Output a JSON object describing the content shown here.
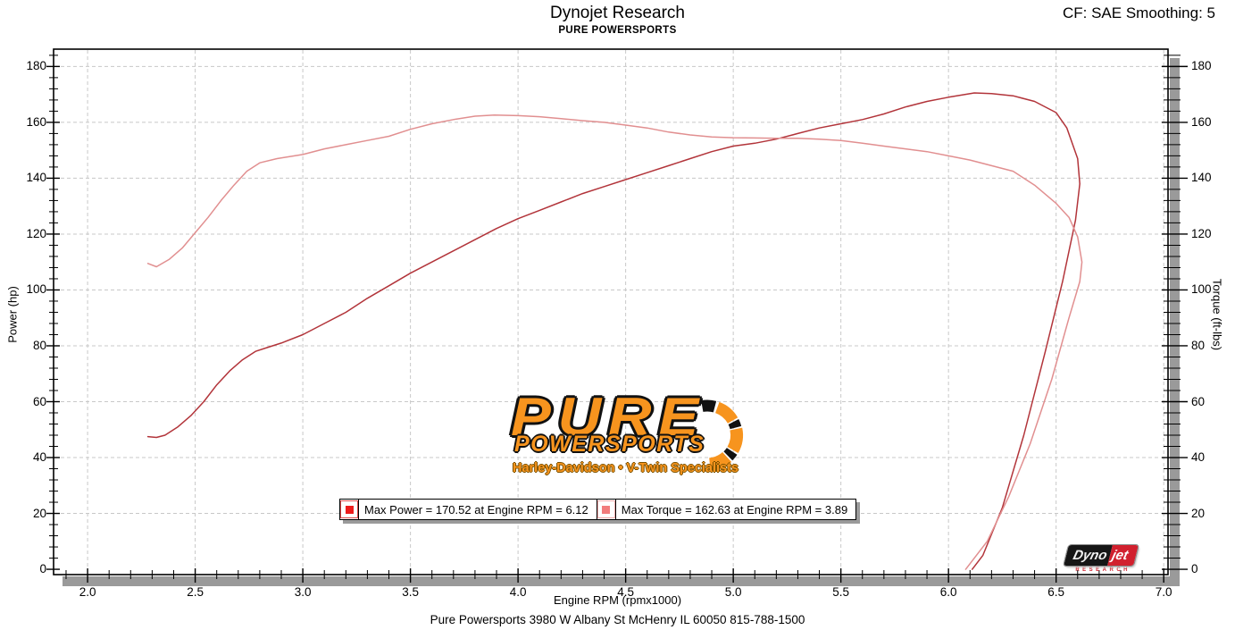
{
  "header": {
    "title": "Dynojet Research",
    "subtitle": "PURE POWERSPORTS",
    "smoothing": "CF: SAE Smoothing: 5"
  },
  "legend": {
    "power_label": "Max Power = 170.52 at Engine RPM = 6.12",
    "torque_label": "Max Torque = 162.63 at Engine RPM = 3.89"
  },
  "logo": {
    "line1": "PURE",
    "line2": "POWERSPORTS",
    "line3": "Harley-Davidson • V-Twin Specialists"
  },
  "watermark": {
    "brand_black": "Dyno",
    "brand_red": "jet",
    "sub": "RESEARCH"
  },
  "footer": {
    "address": "Pure Powersports 3980 W Albany St McHenry IL 60050 815-788-1500"
  },
  "colors": {
    "power_curve": "#b2343a",
    "torque_curve": "#e18f90",
    "power_marker": "#ee1b1b",
    "power_marker_border": "#df4a4a",
    "torque_marker": "#f27c7c",
    "torque_marker_border": "#f2a8a8",
    "grid": "#c8c8c8",
    "shadow": "#9a9a9a",
    "logo_orange": "#f7941e",
    "dynojet_red": "#d1202e"
  },
  "chart_data": {
    "type": "line",
    "title": "Dynojet Research",
    "subtitle": "PURE POWERSPORTS",
    "xlabel": "Engine RPM (rpmx1000)",
    "ylabel_left": "Power (hp)",
    "ylabel_right": "Torque (ft-lbs)",
    "xlim": [
      1.842,
      7.02
    ],
    "ylim": [
      -1.9,
      186.2
    ],
    "x_major_ticks": [
      "2.0",
      "2.5",
      "3.0",
      "3.5",
      "4.0",
      "4.5",
      "5.0",
      "5.5",
      "6.0",
      "6.5",
      "7.0"
    ],
    "x_minor_step": 0.1,
    "y_major_ticks": [
      0,
      20,
      40,
      60,
      80,
      100,
      120,
      140,
      160,
      180
    ],
    "y_minor_step": 4,
    "grid": "on, dashed, at every major tick",
    "legend_position": "bottom-center inside plot",
    "max_power": {
      "value": 170.52,
      "rpm": 6.12
    },
    "max_torque": {
      "value": 162.63,
      "rpm": 3.89
    },
    "series": [
      {
        "name": "Power",
        "units": "hp",
        "color": "#b2343a",
        "points": [
          [
            2.28,
            47.5
          ],
          [
            2.32,
            47.2
          ],
          [
            2.36,
            48.0
          ],
          [
            2.42,
            51.0
          ],
          [
            2.48,
            55.0
          ],
          [
            2.54,
            60.0
          ],
          [
            2.6,
            66.0
          ],
          [
            2.66,
            71.0
          ],
          [
            2.72,
            75.0
          ],
          [
            2.78,
            78.0
          ],
          [
            2.84,
            79.5
          ],
          [
            2.9,
            81.0
          ],
          [
            3.0,
            84.0
          ],
          [
            3.1,
            88.0
          ],
          [
            3.2,
            92.0
          ],
          [
            3.3,
            97.0
          ],
          [
            3.4,
            101.5
          ],
          [
            3.5,
            106.0
          ],
          [
            3.6,
            110.0
          ],
          [
            3.7,
            114.0
          ],
          [
            3.8,
            118.0
          ],
          [
            3.9,
            122.0
          ],
          [
            4.0,
            125.5
          ],
          [
            4.1,
            128.5
          ],
          [
            4.2,
            131.5
          ],
          [
            4.3,
            134.5
          ],
          [
            4.4,
            137.0
          ],
          [
            4.5,
            139.5
          ],
          [
            4.6,
            142.0
          ],
          [
            4.7,
            144.5
          ],
          [
            4.8,
            147.0
          ],
          [
            4.9,
            149.5
          ],
          [
            5.0,
            151.5
          ],
          [
            5.1,
            152.5
          ],
          [
            5.2,
            154.0
          ],
          [
            5.3,
            156.0
          ],
          [
            5.4,
            158.0
          ],
          [
            5.5,
            159.5
          ],
          [
            5.6,
            161.0
          ],
          [
            5.7,
            163.0
          ],
          [
            5.8,
            165.5
          ],
          [
            5.9,
            167.5
          ],
          [
            6.0,
            169.0
          ],
          [
            6.12,
            170.52
          ],
          [
            6.2,
            170.3
          ],
          [
            6.3,
            169.5
          ],
          [
            6.4,
            167.5
          ],
          [
            6.5,
            163.5
          ],
          [
            6.55,
            158.0
          ],
          [
            6.6,
            147.0
          ],
          [
            6.61,
            138.0
          ],
          [
            6.59,
            125.0
          ],
          [
            6.53,
            103.0
          ],
          [
            6.45,
            78.0
          ],
          [
            6.35,
            48.0
          ],
          [
            6.25,
            22.0
          ],
          [
            6.16,
            5.0
          ],
          [
            6.11,
            0.0
          ]
        ]
      },
      {
        "name": "Torque",
        "units": "ft-lbs",
        "color": "#e18f90",
        "points": [
          [
            2.28,
            109.5
          ],
          [
            2.32,
            108.3
          ],
          [
            2.38,
            111.0
          ],
          [
            2.44,
            115.0
          ],
          [
            2.5,
            120.5
          ],
          [
            2.56,
            126.0
          ],
          [
            2.62,
            132.0
          ],
          [
            2.68,
            137.5
          ],
          [
            2.74,
            142.5
          ],
          [
            2.8,
            145.5
          ],
          [
            2.88,
            147.0
          ],
          [
            3.0,
            148.5
          ],
          [
            3.1,
            150.5
          ],
          [
            3.2,
            152.0
          ],
          [
            3.3,
            153.5
          ],
          [
            3.4,
            155.0
          ],
          [
            3.5,
            157.5
          ],
          [
            3.6,
            159.5
          ],
          [
            3.7,
            161.0
          ],
          [
            3.8,
            162.2
          ],
          [
            3.89,
            162.63
          ],
          [
            4.0,
            162.4
          ],
          [
            4.1,
            162.0
          ],
          [
            4.2,
            161.3
          ],
          [
            4.3,
            160.6
          ],
          [
            4.4,
            160.0
          ],
          [
            4.5,
            159.0
          ],
          [
            4.6,
            158.0
          ],
          [
            4.7,
            156.5
          ],
          [
            4.8,
            155.5
          ],
          [
            4.9,
            154.8
          ],
          [
            5.0,
            154.5
          ],
          [
            5.1,
            154.4
          ],
          [
            5.2,
            154.3
          ],
          [
            5.3,
            154.3
          ],
          [
            5.4,
            154.0
          ],
          [
            5.5,
            153.5
          ],
          [
            5.6,
            152.5
          ],
          [
            5.7,
            151.5
          ],
          [
            5.8,
            150.5
          ],
          [
            5.9,
            149.5
          ],
          [
            6.0,
            148.0
          ],
          [
            6.1,
            146.5
          ],
          [
            6.2,
            144.5
          ],
          [
            6.3,
            142.5
          ],
          [
            6.4,
            137.5
          ],
          [
            6.5,
            131.0
          ],
          [
            6.56,
            126.0
          ],
          [
            6.6,
            119.0
          ],
          [
            6.62,
            110.0
          ],
          [
            6.61,
            103.0
          ],
          [
            6.56,
            90.0
          ],
          [
            6.48,
            68.0
          ],
          [
            6.38,
            45.0
          ],
          [
            6.28,
            26.0
          ],
          [
            6.18,
            10.0
          ],
          [
            6.08,
            0.0
          ]
        ]
      }
    ]
  }
}
